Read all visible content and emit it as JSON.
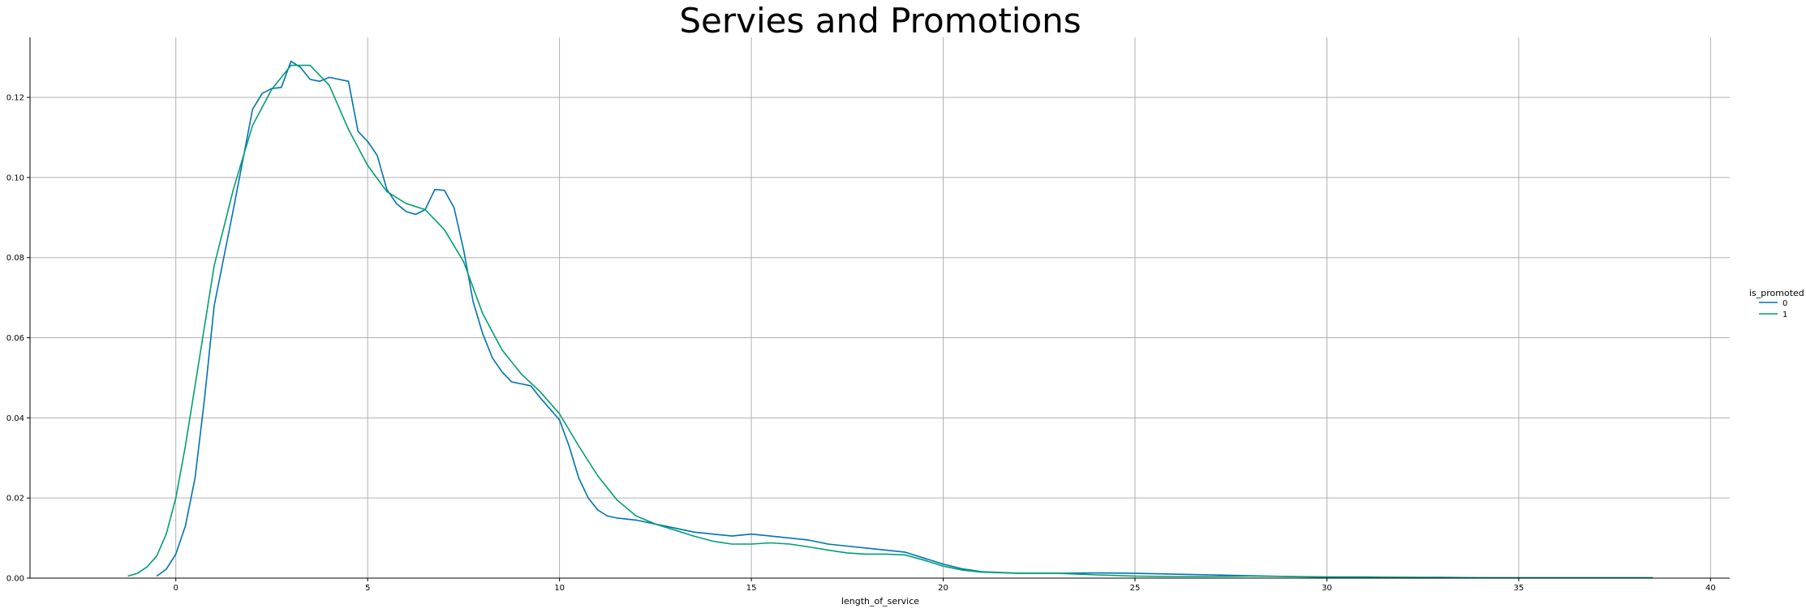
{
  "chart_data": {
    "type": "line",
    "title": "Servies and Promotions",
    "xlabel": "length_of_service",
    "ylabel": "",
    "xlim": [
      -3.8,
      40.5
    ],
    "ylim": [
      0.0,
      0.135
    ],
    "xticks": [
      0,
      5,
      10,
      15,
      20,
      25,
      30,
      35,
      40
    ],
    "yticks": [
      0.0,
      0.02,
      0.04,
      0.06,
      0.08,
      0.1,
      0.12
    ],
    "xtick_labels": [
      "0",
      "5",
      "10",
      "15",
      "20",
      "25",
      "30",
      "35",
      "40"
    ],
    "ytick_labels": [
      "0.00",
      "0.02",
      "0.04",
      "0.06",
      "0.08",
      "0.10",
      "0.12"
    ],
    "grid": true,
    "legend_position": "right",
    "legend": {
      "title": "is_promoted",
      "entries": [
        "0",
        "1"
      ]
    },
    "series": [
      {
        "name": "0",
        "color": "#0072b2",
        "x": [
          -0.5,
          -0.25,
          0,
          0.25,
          0.5,
          0.75,
          1,
          1.5,
          2,
          2.25,
          2.5,
          2.75,
          3,
          3.25,
          3.5,
          3.75,
          4,
          4.5,
          4.75,
          5,
          5.25,
          5.5,
          5.75,
          6,
          6.25,
          6.5,
          6.75,
          7,
          7.25,
          7.5,
          7.75,
          8,
          8.25,
          8.5,
          8.75,
          9,
          9.25,
          9.5,
          10,
          10.25,
          10.5,
          10.75,
          11,
          11.25,
          11.5,
          12,
          12.5,
          13,
          13.5,
          14,
          14.5,
          15,
          15.5,
          16,
          16.5,
          17,
          17.5,
          18,
          18.5,
          19,
          19.5,
          20,
          20.5,
          21,
          22,
          23,
          24,
          25,
          26,
          27,
          28,
          29,
          30,
          31,
          32,
          33,
          34,
          35,
          36,
          37,
          38.5
        ],
        "y": [
          0.0005,
          0.0022,
          0.006,
          0.013,
          0.025,
          0.045,
          0.068,
          0.092,
          0.117,
          0.121,
          0.1222,
          0.1225,
          0.129,
          0.1275,
          0.1245,
          0.124,
          0.125,
          0.124,
          0.1115,
          0.109,
          0.1055,
          0.097,
          0.0935,
          0.0915,
          0.0908,
          0.092,
          0.097,
          0.0968,
          0.0925,
          0.082,
          0.069,
          0.061,
          0.055,
          0.0515,
          0.049,
          0.0485,
          0.048,
          0.045,
          0.0395,
          0.033,
          0.025,
          0.02,
          0.017,
          0.0155,
          0.015,
          0.0145,
          0.0135,
          0.0125,
          0.0115,
          0.011,
          0.0105,
          0.011,
          0.0105,
          0.01,
          0.0095,
          0.0085,
          0.008,
          0.0075,
          0.007,
          0.0065,
          0.005,
          0.0035,
          0.0023,
          0.0016,
          0.0012,
          0.0012,
          0.0013,
          0.0012,
          0.001,
          0.0008,
          0.0006,
          0.0004,
          0.0003,
          0.0003,
          0.0002,
          0.0002,
          0.0001,
          0.0001,
          0.0001,
          0.0001,
          0.0001
        ]
      },
      {
        "name": "1",
        "color": "#009e73",
        "x": [
          -1.25,
          -1,
          -0.75,
          -0.5,
          -0.25,
          0,
          0.25,
          0.5,
          1,
          1.5,
          2,
          2.5,
          3,
          3.5,
          4,
          4.5,
          5,
          5.5,
          6,
          6.5,
          7,
          7.5,
          8,
          8.5,
          9,
          9.5,
          10,
          10.5,
          11,
          11.5,
          12,
          12.5,
          13,
          13.5,
          14,
          14.5,
          15,
          15.5,
          16,
          16.5,
          17,
          17.5,
          18,
          18.5,
          19,
          19.5,
          20,
          20.5,
          21,
          22,
          23,
          24,
          25,
          26,
          27,
          28,
          29,
          30,
          31,
          32,
          33,
          34,
          35,
          36,
          37,
          38.5
        ],
        "y": [
          0.0005,
          0.0012,
          0.0028,
          0.0055,
          0.011,
          0.02,
          0.033,
          0.048,
          0.078,
          0.097,
          0.113,
          0.122,
          0.128,
          0.128,
          0.123,
          0.112,
          0.103,
          0.0965,
          0.0935,
          0.092,
          0.087,
          0.079,
          0.066,
          0.057,
          0.051,
          0.0465,
          0.041,
          0.033,
          0.0255,
          0.0195,
          0.0155,
          0.0135,
          0.012,
          0.0105,
          0.0092,
          0.0085,
          0.0085,
          0.0088,
          0.0085,
          0.0078,
          0.007,
          0.0063,
          0.006,
          0.006,
          0.0058,
          0.0045,
          0.003,
          0.002,
          0.0015,
          0.0012,
          0.0012,
          0.0008,
          0.0005,
          0.0004,
          0.0004,
          0.0005,
          0.0004,
          0.0002,
          0.0002,
          0.0002,
          0.0001,
          0.0001,
          0.0001,
          0.0001,
          0.0001,
          0.0001
        ]
      }
    ]
  }
}
